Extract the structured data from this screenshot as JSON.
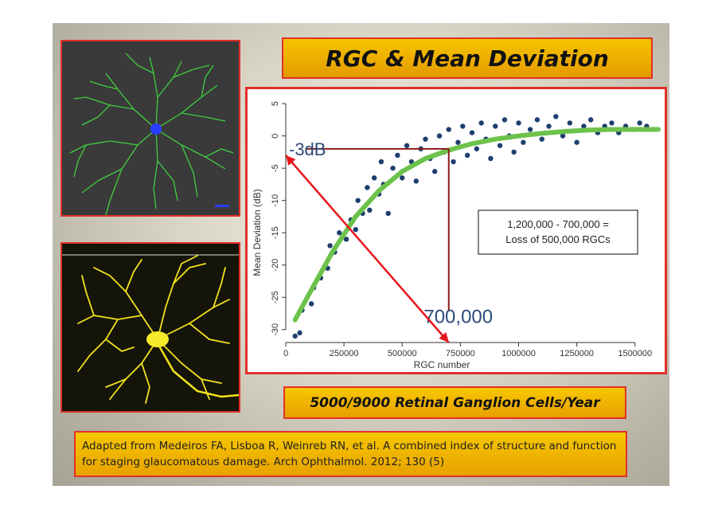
{
  "slide": {
    "title": "RGC & Mean Deviation",
    "rgc_rate": "5000/9000 Retinal Ganglion Cells/Year",
    "reference": "Adapted from Medeiros FA, Lisboa R, Weinreb RN, et al. A combined index of structure and function for staging glaucomatous damage.  Arch Ophthalmol. 2012; 130 (5)"
  },
  "images": {
    "top": "green traced retinal ganglion cell",
    "bottom": "yellow fluorescent retinal ganglion cell"
  },
  "colors": {
    "frame": "#e0302a",
    "box_fill": "#f5c400",
    "points": "#1d3f6e",
    "fit": "#6cc24a",
    "annotation": "#8c1a1a",
    "arrow": "#e8141b"
  },
  "chart_data": {
    "type": "scatter",
    "xlabel": "RGC number",
    "ylabel": "Mean Deviation (dB)",
    "xlim": [
      0,
      1600000
    ],
    "ylim": [
      -32,
      6
    ],
    "x_ticks": [
      0,
      250000,
      500000,
      750000,
      1000000,
      1250000,
      1500000
    ],
    "x_tick_labels": [
      "0",
      "250000",
      "500000",
      "750000",
      "1000000",
      "1250000",
      "1500000"
    ],
    "y_ticks": [
      5,
      0,
      -5,
      -10,
      -15,
      -20,
      -25,
      -30
    ],
    "y_tick_labels": [
      "5",
      "0",
      "-5",
      "-10",
      "-15",
      "-20",
      "-25",
      "-30"
    ],
    "fit_curve": {
      "x": [
        40000,
        100000,
        200000,
        300000,
        400000,
        500000,
        600000,
        700000,
        800000,
        900000,
        1000000,
        1100000,
        1200000,
        1300000,
        1400000,
        1500000,
        1600000
      ],
      "y": [
        -28.5,
        -24.5,
        -18,
        -12.5,
        -8.5,
        -5.5,
        -3.5,
        -2.2,
        -1.2,
        -0.5,
        0,
        0.4,
        0.7,
        0.9,
        1.0,
        1.0,
        1.0
      ]
    },
    "scatter_points": [
      [
        40000,
        -31
      ],
      [
        60000,
        -30.5
      ],
      [
        70000,
        -27
      ],
      [
        110000,
        -26
      ],
      [
        120000,
        -23.5
      ],
      [
        150000,
        -22
      ],
      [
        180000,
        -20.5
      ],
      [
        190000,
        -17
      ],
      [
        210000,
        -18
      ],
      [
        230000,
        -15
      ],
      [
        260000,
        -16
      ],
      [
        280000,
        -13
      ],
      [
        300000,
        -14.5
      ],
      [
        310000,
        -10
      ],
      [
        330000,
        -12
      ],
      [
        350000,
        -8
      ],
      [
        360000,
        -11.5
      ],
      [
        380000,
        -6.5
      ],
      [
        400000,
        -9
      ],
      [
        410000,
        -4
      ],
      [
        420000,
        -7.5
      ],
      [
        440000,
        -12
      ],
      [
        460000,
        -5
      ],
      [
        480000,
        -3
      ],
      [
        500000,
        -6.5
      ],
      [
        520000,
        -1.5
      ],
      [
        540000,
        -4
      ],
      [
        560000,
        -7
      ],
      [
        580000,
        -2
      ],
      [
        600000,
        -0.5
      ],
      [
        620000,
        -3.5
      ],
      [
        640000,
        -5.5
      ],
      [
        660000,
        0
      ],
      [
        680000,
        -2.5
      ],
      [
        700000,
        1
      ],
      [
        720000,
        -4
      ],
      [
        740000,
        -1
      ],
      [
        760000,
        1.5
      ],
      [
        780000,
        -3
      ],
      [
        800000,
        0.5
      ],
      [
        820000,
        -2
      ],
      [
        840000,
        2
      ],
      [
        860000,
        -0.5
      ],
      [
        880000,
        -3.5
      ],
      [
        900000,
        1.5
      ],
      [
        920000,
        -1.5
      ],
      [
        940000,
        2.5
      ],
      [
        960000,
        0
      ],
      [
        980000,
        -2.5
      ],
      [
        1000000,
        2
      ],
      [
        1020000,
        -1
      ],
      [
        1050000,
        1
      ],
      [
        1080000,
        2.5
      ],
      [
        1100000,
        -0.5
      ],
      [
        1130000,
        1.5
      ],
      [
        1160000,
        3
      ],
      [
        1190000,
        0
      ],
      [
        1220000,
        2
      ],
      [
        1250000,
        -1
      ],
      [
        1280000,
        1.5
      ],
      [
        1310000,
        2.5
      ],
      [
        1340000,
        0.5
      ],
      [
        1370000,
        1.5
      ],
      [
        1400000,
        2
      ],
      [
        1430000,
        0.5
      ],
      [
        1460000,
        1.5
      ],
      [
        1490000,
        1
      ],
      [
        1520000,
        2
      ],
      [
        1550000,
        1.5
      ],
      [
        1580000,
        1
      ]
    ],
    "annotations": {
      "db_label": "-3dB",
      "rgc_label": "700,000",
      "box_line1": "1,200,000 - 700,000 =",
      "box_line2": "Loss of 500,000 RGCs",
      "ref_x": 700000,
      "ref_y": -2,
      "arrow_from": [
        0,
        -3
      ],
      "arrow_to": [
        700000,
        -32
      ]
    }
  }
}
